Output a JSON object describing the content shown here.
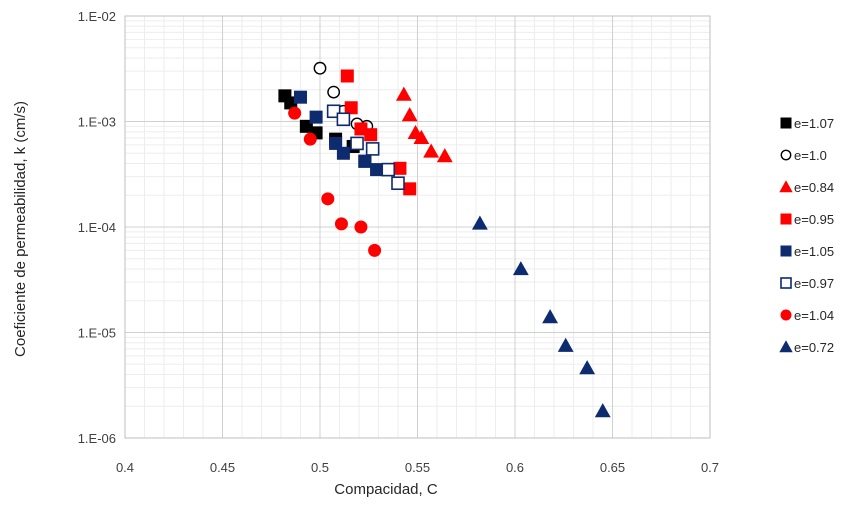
{
  "chart_data": {
    "type": "scatter",
    "xlabel": "Compacidad, C",
    "ylabel": "Coeficiente de permeabilidad, k (cm/s)",
    "xlim": [
      0.4,
      0.7
    ],
    "ylim": [
      1e-06,
      0.01
    ],
    "y_scale": "log",
    "x_ticks": [
      "0.4",
      "0.45",
      "0.5",
      "0.55",
      "0.6",
      "0.65",
      "0.7"
    ],
    "y_ticks": [
      "1.E-06",
      "1.E-05",
      "1.E-04",
      "1.E-03",
      "1.E-02"
    ],
    "grid": true,
    "legend_position": "right",
    "series": [
      {
        "name": "e=1.07",
        "marker": "square-filled",
        "color": "#000000",
        "points": [
          [
            0.482,
            0.00175
          ],
          [
            0.485,
            0.0015
          ],
          [
            0.493,
            0.0009
          ],
          [
            0.498,
            0.00078
          ],
          [
            0.508,
            0.00068
          ],
          [
            0.517,
            0.00058
          ],
          [
            0.523,
            0.00042
          ]
        ]
      },
      {
        "name": "e=1.0",
        "marker": "circle-open",
        "color": "#000000",
        "points": [
          [
            0.5,
            0.0032
          ],
          [
            0.507,
            0.0019
          ],
          [
            0.512,
            0.00125
          ],
          [
            0.519,
            0.00095
          ],
          [
            0.524,
            0.0009
          ]
        ]
      },
      {
        "name": "e=0.84",
        "marker": "triangle-filled",
        "color": "#ff0000",
        "points": [
          [
            0.543,
            0.0018
          ],
          [
            0.546,
            0.00115
          ],
          [
            0.549,
            0.00078
          ],
          [
            0.552,
            0.0007
          ],
          [
            0.557,
            0.00052
          ],
          [
            0.564,
            0.00047
          ]
        ]
      },
      {
        "name": "e=0.95",
        "marker": "square-filled",
        "color": "#ff0000",
        "points": [
          [
            0.514,
            0.0027
          ],
          [
            0.516,
            0.00135
          ],
          [
            0.521,
            0.00085
          ],
          [
            0.526,
            0.00075
          ],
          [
            0.541,
            0.00036
          ],
          [
            0.546,
            0.00023
          ]
        ]
      },
      {
        "name": "e=1.05",
        "marker": "square-filled",
        "color": "#0d2b6e",
        "points": [
          [
            0.49,
            0.0017
          ],
          [
            0.498,
            0.0011
          ],
          [
            0.508,
            0.00062
          ],
          [
            0.512,
            0.0005
          ],
          [
            0.523,
            0.00042
          ],
          [
            0.529,
            0.00035
          ]
        ]
      },
      {
        "name": "e=0.97",
        "marker": "square-open",
        "color": "#0d2b6e",
        "points": [
          [
            0.507,
            0.00125
          ],
          [
            0.512,
            0.00105
          ],
          [
            0.519,
            0.00062
          ],
          [
            0.527,
            0.00055
          ],
          [
            0.535,
            0.00035
          ],
          [
            0.54,
            0.00026
          ]
        ]
      },
      {
        "name": "e=1.04",
        "marker": "circle-filled",
        "color": "#ff0000",
        "points": [
          [
            0.487,
            0.0012
          ],
          [
            0.495,
            0.00068
          ],
          [
            0.504,
            0.000185
          ],
          [
            0.511,
            0.000107
          ],
          [
            0.521,
            0.0001
          ],
          [
            0.528,
            6e-05
          ]
        ]
      },
      {
        "name": "e=0.72",
        "marker": "triangle-filled",
        "color": "#0d2b6e",
        "points": [
          [
            0.582,
            0.000108
          ],
          [
            0.603,
            4e-05
          ],
          [
            0.618,
            1.4e-05
          ],
          [
            0.626,
            7.5e-06
          ],
          [
            0.637,
            4.6e-06
          ],
          [
            0.645,
            1.8e-06
          ]
        ]
      }
    ]
  }
}
